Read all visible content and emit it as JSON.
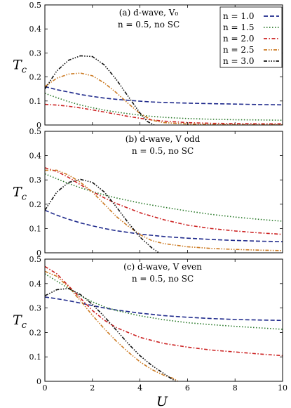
{
  "x_label": "U",
  "chart_data": [
    {
      "type": "line",
      "annotation_line1": "(a) d-wave, V₀",
      "annotation_line2": "n = 0.5, no SC",
      "ylabel": "T_c",
      "ylabel_main": "T",
      "ylabel_sub": "c",
      "xlabel": "",
      "xlim": [
        0,
        10
      ],
      "ylim": [
        0,
        0.5
      ],
      "xticks": [],
      "yticks": [
        "0",
        "0.1",
        "0.2",
        "0.3",
        "0.4",
        "0.5"
      ],
      "legend": "top-right",
      "series": [
        {
          "name": "n = 1.0",
          "color": "#1f2a8c",
          "dash": "dashed",
          "x": [
            0,
            0.5,
            1,
            1.5,
            2,
            2.5,
            3,
            3.5,
            4,
            4.5,
            5,
            6,
            7,
            8,
            9,
            10
          ],
          "y": [
            0.16,
            0.147,
            0.137,
            0.127,
            0.119,
            0.112,
            0.107,
            0.103,
            0.099,
            0.096,
            0.094,
            0.091,
            0.089,
            0.087,
            0.085,
            0.084
          ]
        },
        {
          "name": "n = 1.5",
          "color": "#2a7a2a",
          "dash": "dotted",
          "x": [
            0,
            0.5,
            1,
            1.5,
            2,
            2.5,
            3,
            3.5,
            4,
            4.5,
            5,
            6,
            7,
            8,
            9,
            10
          ],
          "y": [
            0.132,
            0.114,
            0.097,
            0.083,
            0.072,
            0.062,
            0.054,
            0.047,
            0.041,
            0.036,
            0.032,
            0.027,
            0.024,
            0.022,
            0.021,
            0.02
          ]
        },
        {
          "name": "n = 2.0",
          "color": "#cc2222",
          "dash": "dashdot",
          "x": [
            0,
            0.5,
            1,
            1.5,
            2,
            2.5,
            3,
            3.5,
            4,
            4.5,
            5,
            6,
            7,
            8,
            9,
            10
          ],
          "y": [
            0.086,
            0.083,
            0.078,
            0.071,
            0.063,
            0.054,
            0.045,
            0.036,
            0.028,
            0.021,
            0.016,
            0.01,
            0.007,
            0.006,
            0.005,
            0.005
          ]
        },
        {
          "name": "n = 2.5",
          "color": "#cc7a22",
          "dash": "dashdotdot",
          "x": [
            0,
            0.5,
            1,
            1.5,
            2,
            2.5,
            3,
            3.5,
            4,
            4.5,
            5,
            6,
            7,
            8,
            9,
            10
          ],
          "y": [
            0.16,
            0.195,
            0.212,
            0.216,
            0.205,
            0.175,
            0.135,
            0.09,
            0.048,
            0.02,
            0.01,
            0.004,
            0.002,
            0.001,
            0.001,
            0.001
          ]
        },
        {
          "name": "n = 3.0",
          "color": "#111111",
          "dash": "dashdotdotdot",
          "x": [
            0,
            0.5,
            1,
            1.5,
            2,
            2.5,
            3,
            3.5,
            4,
            4.3,
            4.6
          ],
          "y": [
            0.15,
            0.225,
            0.27,
            0.288,
            0.285,
            0.25,
            0.19,
            0.12,
            0.05,
            0.015,
            0.0
          ]
        }
      ]
    },
    {
      "type": "line",
      "annotation_line1": "(b) d-wave, V odd",
      "annotation_line2": "n = 0.5, no SC",
      "ylabel": "T_c",
      "ylabel_main": "T",
      "ylabel_sub": "c",
      "xlabel": "",
      "xlim": [
        0,
        10
      ],
      "ylim": [
        0,
        0.5
      ],
      "xticks": [],
      "yticks": [
        "0",
        "0.1",
        "0.2",
        "0.3",
        "0.4",
        "0.5"
      ],
      "legend": "none",
      "series": [
        {
          "name": "n = 1.0",
          "color": "#1f2a8c",
          "dash": "dashed",
          "x": [
            0,
            0.5,
            1,
            1.5,
            2,
            2.5,
            3,
            4,
            5,
            6,
            7,
            8,
            9,
            10
          ],
          "y": [
            0.175,
            0.155,
            0.138,
            0.123,
            0.111,
            0.1,
            0.091,
            0.077,
            0.067,
            0.06,
            0.055,
            0.051,
            0.048,
            0.046
          ]
        },
        {
          "name": "n = 1.5",
          "color": "#2a7a2a",
          "dash": "dotted",
          "x": [
            0,
            0.5,
            1,
            1.5,
            2,
            2.5,
            3,
            4,
            5,
            6,
            7,
            8,
            9,
            10
          ],
          "y": [
            0.325,
            0.305,
            0.285,
            0.268,
            0.252,
            0.238,
            0.226,
            0.205,
            0.188,
            0.172,
            0.158,
            0.147,
            0.138,
            0.13
          ]
        },
        {
          "name": "n = 2.0",
          "color": "#cc2222",
          "dash": "dashdot",
          "x": [
            0,
            0.5,
            1,
            1.5,
            2,
            2.5,
            3,
            4,
            5,
            6,
            7,
            8,
            9,
            10
          ],
          "y": [
            0.35,
            0.335,
            0.31,
            0.28,
            0.252,
            0.226,
            0.203,
            0.165,
            0.136,
            0.114,
            0.1,
            0.09,
            0.082,
            0.076
          ]
        },
        {
          "name": "n = 2.5",
          "color": "#cc7a22",
          "dash": "dashdotdot",
          "x": [
            0,
            0.5,
            1,
            1.5,
            2,
            2.5,
            3,
            3.5,
            4,
            4.5,
            5,
            6,
            7,
            8,
            9,
            10
          ],
          "y": [
            0.34,
            0.34,
            0.32,
            0.29,
            0.25,
            0.2,
            0.15,
            0.11,
            0.075,
            0.05,
            0.038,
            0.025,
            0.018,
            0.014,
            0.011,
            0.009
          ]
        },
        {
          "name": "n = 3.0",
          "color": "#111111",
          "dash": "dashdotdotdot",
          "x": [
            0,
            0.5,
            1,
            1.5,
            2,
            2.5,
            3,
            3.5,
            4,
            4.5,
            4.8
          ],
          "y": [
            0.175,
            0.25,
            0.29,
            0.302,
            0.29,
            0.25,
            0.19,
            0.125,
            0.065,
            0.02,
            0.0
          ]
        }
      ]
    },
    {
      "type": "line",
      "annotation_line1": "(c) d-wave, V even",
      "annotation_line2": "n = 0.5, no SC",
      "ylabel": "T_c",
      "ylabel_main": "T",
      "ylabel_sub": "c",
      "xlabel": "U",
      "xlim": [
        0,
        10
      ],
      "ylim": [
        0,
        0.5
      ],
      "xticks": [
        "0",
        "2",
        "4",
        "6",
        "8",
        "10"
      ],
      "yticks": [
        "0",
        "0.1",
        "0.2",
        "0.3",
        "0.4",
        "0.5"
      ],
      "legend": "none",
      "series": [
        {
          "name": "n = 1.0",
          "color": "#1f2a8c",
          "dash": "dashed",
          "x": [
            0,
            0.5,
            1,
            1.5,
            2,
            2.5,
            3,
            4,
            5,
            6,
            7,
            8,
            9,
            10
          ],
          "y": [
            0.345,
            0.338,
            0.33,
            0.32,
            0.31,
            0.3,
            0.292,
            0.279,
            0.269,
            0.262,
            0.257,
            0.253,
            0.251,
            0.249
          ]
        },
        {
          "name": "n = 1.5",
          "color": "#2a7a2a",
          "dash": "dotted",
          "x": [
            0,
            0.5,
            1,
            1.5,
            2,
            2.5,
            3,
            4,
            5,
            6,
            7,
            8,
            9,
            10
          ],
          "y": [
            0.44,
            0.41,
            0.38,
            0.35,
            0.325,
            0.305,
            0.29,
            0.268,
            0.252,
            0.24,
            0.232,
            0.225,
            0.219,
            0.213
          ]
        },
        {
          "name": "n = 2.0",
          "color": "#cc2222",
          "dash": "dashdot",
          "x": [
            0,
            0.5,
            1,
            1.5,
            2,
            2.5,
            3,
            4,
            5,
            6,
            7,
            8,
            9,
            10
          ],
          "y": [
            0.47,
            0.44,
            0.39,
            0.34,
            0.29,
            0.25,
            0.22,
            0.18,
            0.155,
            0.14,
            0.128,
            0.12,
            0.112,
            0.105
          ]
        },
        {
          "name": "n = 2.5",
          "color": "#cc7a22",
          "dash": "dashdotdot",
          "x": [
            0,
            0.5,
            1,
            1.5,
            2,
            2.5,
            3,
            3.5,
            4,
            4.5,
            5,
            5.4,
            5.6
          ],
          "y": [
            0.45,
            0.43,
            0.385,
            0.33,
            0.27,
            0.215,
            0.165,
            0.12,
            0.08,
            0.048,
            0.025,
            0.012,
            0.0
          ]
        },
        {
          "name": "n = 3.0",
          "color": "#111111",
          "dash": "dashdotdotdot",
          "x": [
            0,
            0.5,
            1,
            1.5,
            2,
            2.5,
            3,
            3.5,
            4,
            4.5,
            5,
            5.3,
            5.5
          ],
          "y": [
            0.35,
            0.375,
            0.38,
            0.355,
            0.315,
            0.265,
            0.21,
            0.155,
            0.105,
            0.065,
            0.032,
            0.012,
            0.0
          ]
        }
      ]
    }
  ]
}
